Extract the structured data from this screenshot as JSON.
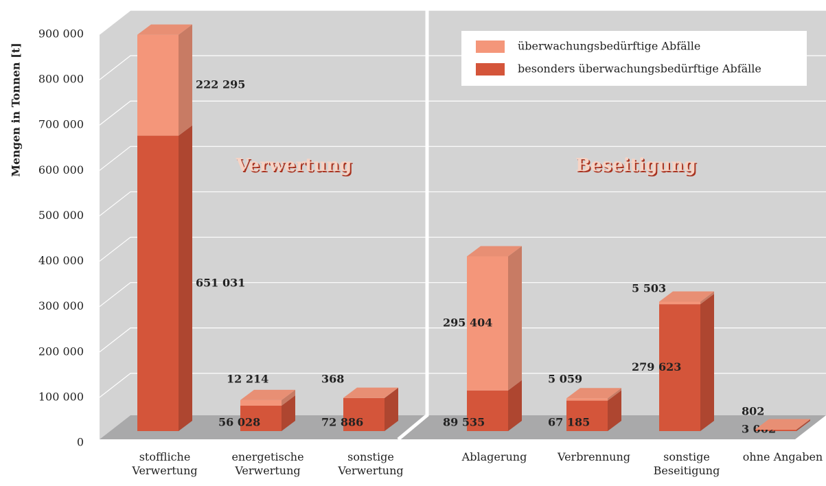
{
  "chart_data": {
    "type": "bar3d_stacked",
    "ylabel": "Mengen in Tonnen [t]",
    "categories": [
      "stoffliche\nVerwertung",
      "energetische\nVerwertung",
      "sonstige\nVerwertung",
      "Ablagerung",
      "Verbrennung",
      "sonstige\nBeseitigung",
      "ohne Angaben"
    ],
    "series": [
      {
        "name": "besonders überwachungsbedürftige Abfälle",
        "color": "#d4553a",
        "values": [
          651031,
          56028,
          72886,
          89535,
          67185,
          279623,
          3002
        ],
        "value_labels": [
          "651 031",
          "56 028",
          "72 886",
          "89 535",
          "67 185",
          "279 623",
          "3 002"
        ]
      },
      {
        "name": "überwachungsbedürftige Abfälle",
        "color": "#f4967a",
        "values": [
          222295,
          12214,
          368,
          295404,
          5059,
          5503,
          802
        ],
        "value_labels": [
          "222 295",
          "12 214",
          "368",
          "295 404",
          "5 059",
          "5 503",
          "802"
        ]
      }
    ],
    "annotations": [
      "Verwertung",
      "Beseitigung"
    ],
    "ylim": [
      0,
      900000
    ],
    "yticks": [
      0,
      {
        "value": 100000,
        "label": "100 000"
      },
      {
        "value": 200000,
        "label": "200 000"
      },
      {
        "value": 300000,
        "label": "300 000"
      },
      {
        "value": 400000,
        "label": "400 000"
      },
      {
        "value": 500000,
        "label": "500 000"
      },
      {
        "value": 600000,
        "label": "600 000"
      },
      {
        "value": 700000,
        "label": "700 000"
      },
      {
        "value": 800000,
        "label": "800 000"
      },
      {
        "value": 900000,
        "label": "900 000"
      }
    ],
    "grid": true,
    "legend": "upper right"
  }
}
